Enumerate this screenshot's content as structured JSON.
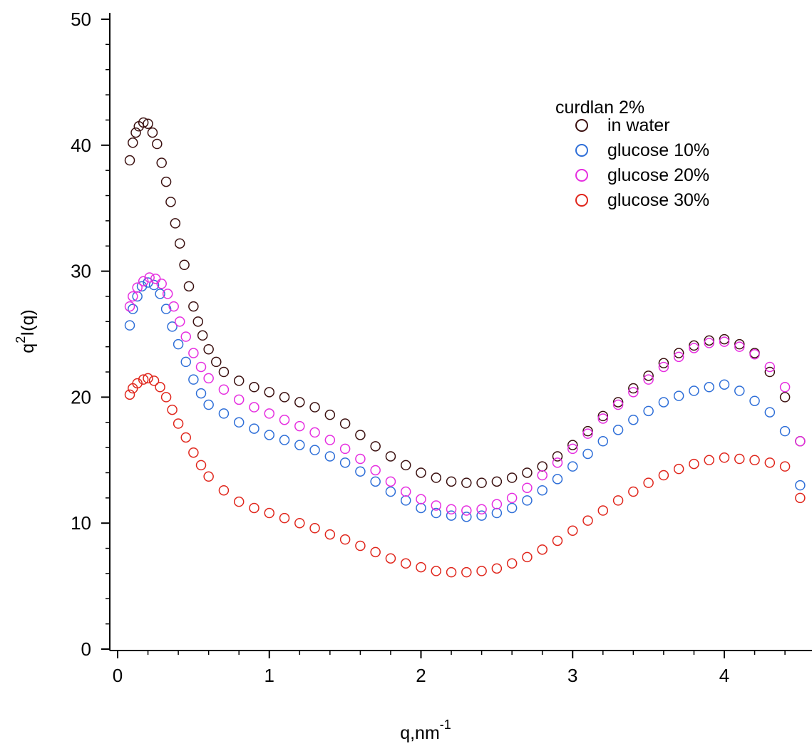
{
  "chart_data": {
    "type": "scatter",
    "xlabel_base": "q,nm",
    "xlabel_sup": "-1",
    "ylabel_pre": "q",
    "ylabel_sup": "2",
    "ylabel_post": "I(q)",
    "xlim": [
      -0.05,
      4.55
    ],
    "ylim": [
      -0.5,
      50.5
    ],
    "x_ticks": [
      0,
      1,
      2,
      3,
      4
    ],
    "y_ticks": [
      0,
      10,
      20,
      30,
      40,
      50
    ],
    "legend_title": "curdlan 2%",
    "legend_position": "upper-right",
    "grid": false,
    "series": [
      {
        "name": "in water",
        "color": "#3b1010",
        "points": [
          [
            0.08,
            38.8
          ],
          [
            0.1,
            40.2
          ],
          [
            0.12,
            41.0
          ],
          [
            0.14,
            41.5
          ],
          [
            0.17,
            41.8
          ],
          [
            0.2,
            41.7
          ],
          [
            0.23,
            41.0
          ],
          [
            0.26,
            40.1
          ],
          [
            0.29,
            38.6
          ],
          [
            0.32,
            37.1
          ],
          [
            0.35,
            35.5
          ],
          [
            0.38,
            33.8
          ],
          [
            0.41,
            32.2
          ],
          [
            0.44,
            30.5
          ],
          [
            0.47,
            28.8
          ],
          [
            0.5,
            27.2
          ],
          [
            0.53,
            26.0
          ],
          [
            0.56,
            24.9
          ],
          [
            0.6,
            23.8
          ],
          [
            0.65,
            22.8
          ],
          [
            0.7,
            22.0
          ],
          [
            0.8,
            21.3
          ],
          [
            0.9,
            20.8
          ],
          [
            1.0,
            20.4
          ],
          [
            1.1,
            20.0
          ],
          [
            1.2,
            19.6
          ],
          [
            1.3,
            19.2
          ],
          [
            1.4,
            18.6
          ],
          [
            1.5,
            17.9
          ],
          [
            1.6,
            17.0
          ],
          [
            1.7,
            16.1
          ],
          [
            1.8,
            15.3
          ],
          [
            1.9,
            14.6
          ],
          [
            2.0,
            14.0
          ],
          [
            2.1,
            13.6
          ],
          [
            2.2,
            13.3
          ],
          [
            2.3,
            13.2
          ],
          [
            2.4,
            13.2
          ],
          [
            2.5,
            13.3
          ],
          [
            2.6,
            13.6
          ],
          [
            2.7,
            14.0
          ],
          [
            2.8,
            14.5
          ],
          [
            2.9,
            15.3
          ],
          [
            3.0,
            16.2
          ],
          [
            3.1,
            17.3
          ],
          [
            3.2,
            18.5
          ],
          [
            3.3,
            19.6
          ],
          [
            3.4,
            20.7
          ],
          [
            3.5,
            21.7
          ],
          [
            3.6,
            22.7
          ],
          [
            3.7,
            23.5
          ],
          [
            3.8,
            24.1
          ],
          [
            3.9,
            24.5
          ],
          [
            4.0,
            24.6
          ],
          [
            4.1,
            24.2
          ],
          [
            4.2,
            23.5
          ],
          [
            4.3,
            22.0
          ],
          [
            4.4,
            20.0
          ],
          [
            4.5,
            16.5
          ]
        ]
      },
      {
        "name": "glucose 10%",
        "color": "#2f6fd8",
        "points": [
          [
            0.08,
            25.7
          ],
          [
            0.1,
            27.0
          ],
          [
            0.13,
            28.0
          ],
          [
            0.16,
            28.8
          ],
          [
            0.2,
            29.1
          ],
          [
            0.24,
            28.9
          ],
          [
            0.28,
            28.2
          ],
          [
            0.32,
            27.0
          ],
          [
            0.36,
            25.6
          ],
          [
            0.4,
            24.2
          ],
          [
            0.45,
            22.8
          ],
          [
            0.5,
            21.4
          ],
          [
            0.55,
            20.3
          ],
          [
            0.6,
            19.4
          ],
          [
            0.7,
            18.7
          ],
          [
            0.8,
            18.0
          ],
          [
            0.9,
            17.5
          ],
          [
            1.0,
            17.0
          ],
          [
            1.1,
            16.6
          ],
          [
            1.2,
            16.2
          ],
          [
            1.3,
            15.8
          ],
          [
            1.4,
            15.3
          ],
          [
            1.5,
            14.8
          ],
          [
            1.6,
            14.1
          ],
          [
            1.7,
            13.3
          ],
          [
            1.8,
            12.5
          ],
          [
            1.9,
            11.8
          ],
          [
            2.0,
            11.2
          ],
          [
            2.1,
            10.8
          ],
          [
            2.2,
            10.6
          ],
          [
            2.3,
            10.5
          ],
          [
            2.4,
            10.6
          ],
          [
            2.5,
            10.8
          ],
          [
            2.6,
            11.2
          ],
          [
            2.7,
            11.8
          ],
          [
            2.8,
            12.6
          ],
          [
            2.9,
            13.5
          ],
          [
            3.0,
            14.5
          ],
          [
            3.1,
            15.5
          ],
          [
            3.2,
            16.5
          ],
          [
            3.3,
            17.4
          ],
          [
            3.4,
            18.2
          ],
          [
            3.5,
            18.9
          ],
          [
            3.6,
            19.6
          ],
          [
            3.7,
            20.1
          ],
          [
            3.8,
            20.5
          ],
          [
            3.9,
            20.8
          ],
          [
            4.0,
            21.0
          ],
          [
            4.1,
            20.5
          ],
          [
            4.2,
            19.7
          ],
          [
            4.3,
            18.8
          ],
          [
            4.4,
            17.3
          ],
          [
            4.5,
            13.0
          ]
        ]
      },
      {
        "name": "glucose 20%",
        "color": "#e62ee0",
        "points": [
          [
            0.08,
            27.2
          ],
          [
            0.1,
            28.0
          ],
          [
            0.13,
            28.7
          ],
          [
            0.17,
            29.2
          ],
          [
            0.21,
            29.5
          ],
          [
            0.25,
            29.4
          ],
          [
            0.29,
            29.0
          ],
          [
            0.33,
            28.2
          ],
          [
            0.37,
            27.2
          ],
          [
            0.41,
            26.0
          ],
          [
            0.45,
            24.8
          ],
          [
            0.5,
            23.5
          ],
          [
            0.55,
            22.4
          ],
          [
            0.6,
            21.5
          ],
          [
            0.7,
            20.6
          ],
          [
            0.8,
            19.8
          ],
          [
            0.9,
            19.2
          ],
          [
            1.0,
            18.7
          ],
          [
            1.1,
            18.2
          ],
          [
            1.2,
            17.7
          ],
          [
            1.3,
            17.2
          ],
          [
            1.4,
            16.6
          ],
          [
            1.5,
            15.9
          ],
          [
            1.6,
            15.1
          ],
          [
            1.7,
            14.2
          ],
          [
            1.8,
            13.3
          ],
          [
            1.9,
            12.5
          ],
          [
            2.0,
            11.9
          ],
          [
            2.1,
            11.4
          ],
          [
            2.2,
            11.1
          ],
          [
            2.3,
            11.0
          ],
          [
            2.4,
            11.1
          ],
          [
            2.5,
            11.5
          ],
          [
            2.6,
            12.0
          ],
          [
            2.7,
            12.8
          ],
          [
            2.8,
            13.8
          ],
          [
            2.9,
            14.8
          ],
          [
            3.0,
            15.9
          ],
          [
            3.1,
            17.1
          ],
          [
            3.2,
            18.3
          ],
          [
            3.3,
            19.4
          ],
          [
            3.4,
            20.4
          ],
          [
            3.5,
            21.4
          ],
          [
            3.6,
            22.4
          ],
          [
            3.7,
            23.2
          ],
          [
            3.8,
            23.9
          ],
          [
            3.9,
            24.3
          ],
          [
            4.0,
            24.4
          ],
          [
            4.1,
            24.0
          ],
          [
            4.2,
            23.4
          ],
          [
            4.3,
            22.4
          ],
          [
            4.4,
            20.8
          ],
          [
            4.5,
            16.5
          ]
        ]
      },
      {
        "name": "glucose 30%",
        "color": "#e0261c",
        "points": [
          [
            0.08,
            20.2
          ],
          [
            0.1,
            20.7
          ],
          [
            0.13,
            21.1
          ],
          [
            0.17,
            21.4
          ],
          [
            0.2,
            21.5
          ],
          [
            0.24,
            21.3
          ],
          [
            0.28,
            20.8
          ],
          [
            0.32,
            20.0
          ],
          [
            0.36,
            19.0
          ],
          [
            0.4,
            17.9
          ],
          [
            0.45,
            16.8
          ],
          [
            0.5,
            15.6
          ],
          [
            0.55,
            14.6
          ],
          [
            0.6,
            13.7
          ],
          [
            0.7,
            12.6
          ],
          [
            0.8,
            11.7
          ],
          [
            0.9,
            11.2
          ],
          [
            1.0,
            10.8
          ],
          [
            1.1,
            10.4
          ],
          [
            1.2,
            10.0
          ],
          [
            1.3,
            9.6
          ],
          [
            1.4,
            9.1
          ],
          [
            1.5,
            8.7
          ],
          [
            1.6,
            8.2
          ],
          [
            1.7,
            7.7
          ],
          [
            1.8,
            7.2
          ],
          [
            1.9,
            6.8
          ],
          [
            2.0,
            6.5
          ],
          [
            2.1,
            6.2
          ],
          [
            2.2,
            6.1
          ],
          [
            2.3,
            6.1
          ],
          [
            2.4,
            6.2
          ],
          [
            2.5,
            6.4
          ],
          [
            2.6,
            6.8
          ],
          [
            2.7,
            7.3
          ],
          [
            2.8,
            7.9
          ],
          [
            2.9,
            8.6
          ],
          [
            3.0,
            9.4
          ],
          [
            3.1,
            10.2
          ],
          [
            3.2,
            11.0
          ],
          [
            3.3,
            11.8
          ],
          [
            3.4,
            12.5
          ],
          [
            3.5,
            13.2
          ],
          [
            3.6,
            13.8
          ],
          [
            3.7,
            14.3
          ],
          [
            3.8,
            14.7
          ],
          [
            3.9,
            15.0
          ],
          [
            4.0,
            15.2
          ],
          [
            4.1,
            15.1
          ],
          [
            4.2,
            15.0
          ],
          [
            4.3,
            14.8
          ],
          [
            4.4,
            14.5
          ],
          [
            4.5,
            12.0
          ]
        ]
      }
    ]
  }
}
